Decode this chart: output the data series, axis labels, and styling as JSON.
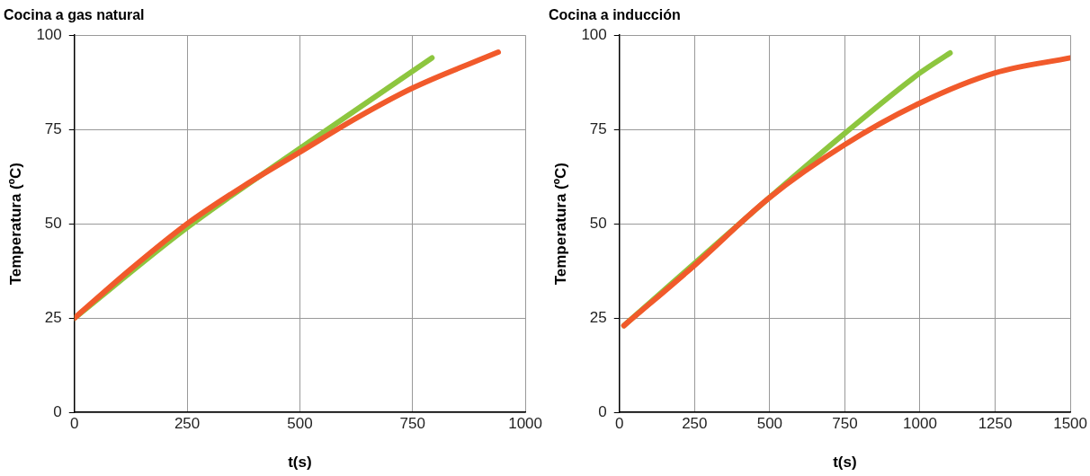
{
  "chart_data": [
    {
      "type": "line",
      "title": "Cocina a gas natural",
      "xlabel": "t(s)",
      "ylabel": "Temperatura (ºC)",
      "xlim": [
        0,
        1000
      ],
      "xticks": [
        0,
        250,
        500,
        750,
        1000
      ],
      "ylim": [
        0,
        100
      ],
      "yticks": [
        0,
        25,
        50,
        75,
        100
      ],
      "grid": true,
      "legend": false,
      "marker": "none",
      "line_style": "solid",
      "series": [
        {
          "color": "#f15a2b",
          "x": [
            0,
            125,
            250,
            375,
            500,
            625,
            750,
            940
          ],
          "values": [
            25,
            38,
            50,
            60,
            69,
            78,
            86,
            95.5
          ]
        },
        {
          "color": "#8dc63f",
          "x": [
            0,
            250,
            500,
            793
          ],
          "values": [
            25,
            49,
            70,
            94
          ]
        }
      ]
    },
    {
      "type": "line",
      "title": "Cocina a inducción",
      "xlabel": "t(s)",
      "ylabel": "Temperatura (ºC)",
      "xlim": [
        0,
        1500
      ],
      "xticks": [
        0,
        250,
        500,
        750,
        1000,
        1250,
        1500
      ],
      "ylim": [
        0,
        100
      ],
      "yticks": [
        0,
        25,
        50,
        75,
        100
      ],
      "grid": true,
      "legend": false,
      "marker": "none",
      "line_style": "solid",
      "series": [
        {
          "color": "#f15a2b",
          "x": [
            15,
            250,
            500,
            750,
            1000,
            1250,
            1500
          ],
          "values": [
            23,
            39,
            57,
            71,
            82,
            90,
            94
          ]
        },
        {
          "color": "#8dc63f",
          "x": [
            15,
            500,
            750,
            1000,
            1100
          ],
          "values": [
            23,
            57,
            74,
            90,
            95.3
          ]
        }
      ]
    }
  ]
}
